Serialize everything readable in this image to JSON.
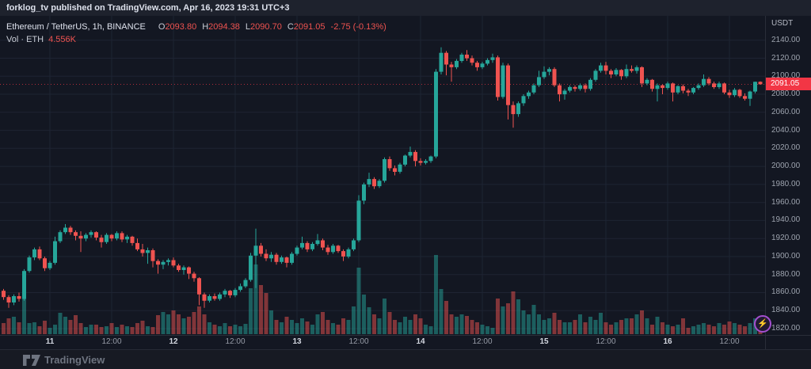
{
  "header": {
    "title": "forklog_tv published on TradingView.com, Apr 16, 2023 19:31 UTC+3"
  },
  "legend": {
    "symbol": "Ethereum / TetherUS, 1h, BINANCE",
    "o_label": "O",
    "o_value": "2093.80",
    "h_label": "H",
    "h_value": "2094.38",
    "l_label": "L",
    "l_value": "2090.70",
    "c_label": "C",
    "c_value": "2091.05",
    "change": "-2.75 (-0.13%)",
    "vol_label": "Vol · ETH",
    "vol_value": "4.556K"
  },
  "axes": {
    "currency": "USDT",
    "last_price_label": "2091.05"
  },
  "footer": {
    "brand": "TradingView"
  },
  "misc": {
    "lightning_icon": "⚡"
  },
  "colors": {
    "up": "#26a69a",
    "down": "#ef5350",
    "grid": "#1e2433",
    "price_line": "#f23645",
    "price_chip_bg": "#f23645",
    "accent_purple": "#a44fd0",
    "axis_text": "#9da3ae"
  },
  "chart_data": {
    "type": "candlestick",
    "title": "Ethereum / TetherUS, 1h, BINANCE",
    "legend_position": "top-left",
    "grid": true,
    "ylim": [
      1813,
      2167
    ],
    "price_ticks": [
      2140,
      2120,
      2100,
      2080,
      2060,
      2040,
      2020,
      2000,
      1980,
      1960,
      1940,
      1920,
      1900,
      1880,
      1860,
      1840,
      1820
    ],
    "time_ticks": [
      {
        "label": "11",
        "candle": 9,
        "day": true
      },
      {
        "label": "12:00",
        "candle": 21,
        "day": false
      },
      {
        "label": "12",
        "candle": 33,
        "day": true
      },
      {
        "label": "12:00",
        "candle": 45,
        "day": false
      },
      {
        "label": "13",
        "candle": 57,
        "day": true
      },
      {
        "label": "12:00",
        "candle": 69,
        "day": false
      },
      {
        "label": "14",
        "candle": 81,
        "day": true
      },
      {
        "label": "12:00",
        "candle": 93,
        "day": false
      },
      {
        "label": "15",
        "candle": 105,
        "day": true
      },
      {
        "label": "12:00",
        "candle": 117,
        "day": false
      },
      {
        "label": "16",
        "candle": 129,
        "day": true
      },
      {
        "label": "12:00",
        "candle": 141,
        "day": false
      }
    ],
    "last_close": 2091.05,
    "volume_scale": "relative-pixel-height",
    "candles_ohlcv": [
      [
        1862,
        1864,
        1852,
        1855,
        14
      ],
      [
        1855,
        1857,
        1843,
        1849,
        20
      ],
      [
        1849,
        1858,
        1846,
        1856,
        22
      ],
      [
        1856,
        1860,
        1850,
        1853,
        15
      ],
      [
        1853,
        1886,
        1851,
        1884,
        67
      ],
      [
        1884,
        1901,
        1882,
        1899,
        14
      ],
      [
        1899,
        1910,
        1896,
        1908,
        15
      ],
      [
        1908,
        1911,
        1896,
        1898,
        10
      ],
      [
        1898,
        1900,
        1884,
        1887,
        17
      ],
      [
        1887,
        1895,
        1885,
        1893,
        8
      ],
      [
        1893,
        1922,
        1891,
        1917,
        12
      ],
      [
        1917,
        1929,
        1915,
        1927,
        27
      ],
      [
        1927,
        1936,
        1925,
        1932,
        22
      ],
      [
        1932,
        1934,
        1924,
        1927,
        18
      ],
      [
        1927,
        1929,
        1918,
        1923,
        24
      ],
      [
        1923,
        1928,
        1905,
        1920,
        14
      ],
      [
        1920,
        1926,
        1917,
        1924,
        9
      ],
      [
        1924,
        1929,
        1921,
        1927,
        12
      ],
      [
        1927,
        1928,
        1918,
        1921,
        12
      ],
      [
        1921,
        1924,
        1910,
        1916,
        9
      ],
      [
        1916,
        1926,
        1914,
        1924,
        10
      ],
      [
        1924,
        1925,
        1917,
        1920,
        14
      ],
      [
        1920,
        1928,
        1918,
        1926,
        9
      ],
      [
        1926,
        1928,
        1916,
        1919,
        12
      ],
      [
        1919,
        1924,
        1915,
        1922,
        10
      ],
      [
        1922,
        1923,
        1912,
        1915,
        9
      ],
      [
        1915,
        1920,
        1906,
        1908,
        14
      ],
      [
        1908,
        1914,
        1900,
        1904,
        17
      ],
      [
        1904,
        1910,
        1892,
        1907,
        10
      ],
      [
        1907,
        1909,
        1888,
        1895,
        9
      ],
      [
        1895,
        1897,
        1881,
        1891,
        24
      ],
      [
        1891,
        1896,
        1886,
        1894,
        28
      ],
      [
        1894,
        1898,
        1890,
        1896,
        25
      ],
      [
        1896,
        1899,
        1888,
        1890,
        30
      ],
      [
        1890,
        1892,
        1883,
        1885,
        25
      ],
      [
        1885,
        1890,
        1880,
        1888,
        20
      ],
      [
        1888,
        1889,
        1875,
        1881,
        22
      ],
      [
        1881,
        1883,
        1872,
        1876,
        28
      ],
      [
        1876,
        1877,
        1846,
        1858,
        35
      ],
      [
        1858,
        1860,
        1843,
        1851,
        25
      ],
      [
        1851,
        1858,
        1849,
        1856,
        15
      ],
      [
        1856,
        1859,
        1851,
        1853,
        12
      ],
      [
        1853,
        1860,
        1851,
        1858,
        10
      ],
      [
        1858,
        1864,
        1855,
        1862,
        14
      ],
      [
        1862,
        1863,
        1854,
        1857,
        10
      ],
      [
        1857,
        1865,
        1855,
        1863,
        12
      ],
      [
        1863,
        1870,
        1861,
        1867,
        10
      ],
      [
        1867,
        1876,
        1865,
        1874,
        13
      ],
      [
        1874,
        1904,
        1872,
        1901,
        58
      ],
      [
        1901,
        1931,
        1865,
        1912,
        88
      ],
      [
        1912,
        1915,
        1900,
        1903,
        62
      ],
      [
        1903,
        1908,
        1895,
        1898,
        52
      ],
      [
        1898,
        1905,
        1894,
        1902,
        30
      ],
      [
        1902,
        1904,
        1891,
        1894,
        18
      ],
      [
        1894,
        1901,
        1892,
        1899,
        15
      ],
      [
        1899,
        1900,
        1888,
        1893,
        22
      ],
      [
        1893,
        1905,
        1891,
        1903,
        18
      ],
      [
        1903,
        1912,
        1901,
        1910,
        14
      ],
      [
        1910,
        1922,
        1908,
        1915,
        20
      ],
      [
        1915,
        1917,
        1905,
        1908,
        16
      ],
      [
        1908,
        1916,
        1906,
        1914,
        12
      ],
      [
        1914,
        1925,
        1912,
        1918,
        25
      ],
      [
        1918,
        1920,
        1907,
        1910,
        28
      ],
      [
        1910,
        1913,
        1902,
        1905,
        18
      ],
      [
        1905,
        1914,
        1903,
        1912,
        14
      ],
      [
        1912,
        1913,
        1904,
        1906,
        12
      ],
      [
        1906,
        1908,
        1895,
        1900,
        20
      ],
      [
        1900,
        1910,
        1898,
        1908,
        18
      ],
      [
        1908,
        1920,
        1906,
        1918,
        35
      ],
      [
        1918,
        1968,
        1916,
        1962,
        84
      ],
      [
        1962,
        1982,
        1958,
        1980,
        50
      ],
      [
        1980,
        1993,
        1977,
        1986,
        34
      ],
      [
        1986,
        1988,
        1975,
        1978,
        25
      ],
      [
        1978,
        1986,
        1976,
        1984,
        20
      ],
      [
        1984,
        2010,
        1982,
        2008,
        45
      ],
      [
        2008,
        2011,
        1995,
        1998,
        28
      ],
      [
        1998,
        2001,
        1990,
        1994,
        18
      ],
      [
        1994,
        2004,
        1992,
        2002,
        15
      ],
      [
        2002,
        2013,
        2000,
        2012,
        22
      ],
      [
        2012,
        2022,
        2010,
        2016,
        18
      ],
      [
        2016,
        2018,
        2000,
        2006,
        25
      ],
      [
        2006,
        2009,
        2001,
        2004,
        20
      ],
      [
        2004,
        2008,
        2002,
        2006,
        12
      ],
      [
        2006,
        2012,
        2004,
        2011,
        10
      ],
      [
        2011,
        2108,
        2009,
        2105,
        100
      ],
      [
        2105,
        2132,
        2102,
        2126,
        57
      ],
      [
        2126,
        2128,
        2101,
        2113,
        42
      ],
      [
        2113,
        2116,
        2094,
        2110,
        25
      ],
      [
        2110,
        2119,
        2108,
        2117,
        22
      ],
      [
        2117,
        2126,
        2115,
        2124,
        25
      ],
      [
        2124,
        2129,
        2117,
        2120,
        23
      ],
      [
        2120,
        2123,
        2112,
        2115,
        18
      ],
      [
        2115,
        2117,
        2106,
        2110,
        15
      ],
      [
        2110,
        2116,
        2108,
        2114,
        12
      ],
      [
        2114,
        2120,
        2112,
        2118,
        10
      ],
      [
        2118,
        2125,
        2115,
        2121,
        8
      ],
      [
        2121,
        2123,
        2073,
        2077,
        45
      ],
      [
        2077,
        2115,
        2075,
        2112,
        35
      ],
      [
        2112,
        2114,
        2052,
        2068,
        39
      ],
      [
        2068,
        2072,
        2043,
        2058,
        54
      ],
      [
        2058,
        2072,
        2055,
        2070,
        44
      ],
      [
        2070,
        2080,
        2067,
        2078,
        30
      ],
      [
        2078,
        2084,
        2075,
        2082,
        25
      ],
      [
        2082,
        2092,
        2080,
        2090,
        37
      ],
      [
        2090,
        2106,
        2088,
        2099,
        25
      ],
      [
        2099,
        2111,
        2097,
        2105,
        18
      ],
      [
        2105,
        2110,
        2101,
        2108,
        20
      ],
      [
        2108,
        2110,
        2088,
        2090,
        27
      ],
      [
        2090,
        2092,
        2072,
        2080,
        18
      ],
      [
        2080,
        2086,
        2074,
        2084,
        15
      ],
      [
        2084,
        2090,
        2082,
        2088,
        15
      ],
      [
        2088,
        2090,
        2083,
        2086,
        18
      ],
      [
        2086,
        2092,
        2084,
        2090,
        25
      ],
      [
        2090,
        2092,
        2082,
        2086,
        15
      ],
      [
        2086,
        2098,
        2084,
        2096,
        22
      ],
      [
        2096,
        2108,
        2094,
        2106,
        18
      ],
      [
        2106,
        2115,
        2104,
        2112,
        27
      ],
      [
        2112,
        2116,
        2102,
        2106,
        15
      ],
      [
        2106,
        2108,
        2098,
        2102,
        12
      ],
      [
        2102,
        2109,
        2100,
        2107,
        15
      ],
      [
        2107,
        2108,
        2096,
        2100,
        18
      ],
      [
        2100,
        2113,
        2098,
        2108,
        20
      ],
      [
        2108,
        2112,
        2104,
        2106,
        20
      ],
      [
        2106,
        2112,
        2103,
        2110,
        25
      ],
      [
        2110,
        2111,
        2088,
        2092,
        30
      ],
      [
        2092,
        2098,
        2090,
        2096,
        20
      ],
      [
        2096,
        2097,
        2083,
        2086,
        12
      ],
      [
        2086,
        2092,
        2072,
        2090,
        22
      ],
      [
        2090,
        2091,
        2080,
        2087,
        15
      ],
      [
        2087,
        2094,
        2085,
        2092,
        12
      ],
      [
        2092,
        2093,
        2072,
        2082,
        10
      ],
      [
        2082,
        2090,
        2080,
        2089,
        12
      ],
      [
        2089,
        2091,
        2081,
        2084,
        20
      ],
      [
        2084,
        2086,
        2078,
        2082,
        8
      ],
      [
        2082,
        2088,
        2080,
        2087,
        10
      ],
      [
        2087,
        2092,
        2085,
        2090,
        12
      ],
      [
        2090,
        2102,
        2088,
        2097,
        14
      ],
      [
        2097,
        2099,
        2090,
        2092,
        12
      ],
      [
        2092,
        2094,
        2086,
        2088,
        10
      ],
      [
        2088,
        2094,
        2086,
        2092,
        14
      ],
      [
        2092,
        2093,
        2080,
        2082,
        12
      ],
      [
        2082,
        2085,
        2076,
        2079,
        16
      ],
      [
        2079,
        2087,
        2077,
        2085,
        14
      ],
      [
        2085,
        2086,
        2076,
        2078,
        12
      ],
      [
        2078,
        2081,
        2073,
        2075,
        10
      ],
      [
        2075,
        2084,
        2067,
        2083,
        14
      ],
      [
        2083,
        2094,
        2081,
        2093.8,
        20
      ],
      [
        2093.8,
        2094.38,
        2090.7,
        2091.05,
        16
      ]
    ]
  }
}
